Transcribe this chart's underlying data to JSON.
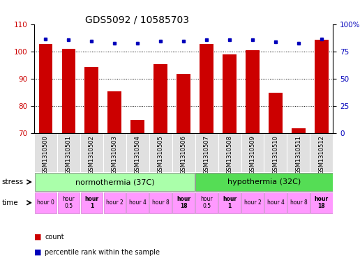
{
  "title": "GDS5092 / 10585703",
  "samples": [
    "GSM1310500",
    "GSM1310501",
    "GSM1310502",
    "GSM1310503",
    "GSM1310504",
    "GSM1310505",
    "GSM1310506",
    "GSM1310507",
    "GSM1310508",
    "GSM1310509",
    "GSM1310510",
    "GSM1310511",
    "GSM1310512"
  ],
  "count_values": [
    103,
    101,
    94.5,
    85.5,
    75,
    95.5,
    92,
    103,
    99,
    100.5,
    85,
    72,
    104.5
  ],
  "percentile_values": [
    87,
    86,
    85,
    83,
    83,
    85,
    85,
    86,
    86,
    86,
    84,
    83,
    87
  ],
  "ylim_left": [
    70,
    110
  ],
  "ylim_right": [
    0,
    100
  ],
  "yticks_left": [
    70,
    80,
    90,
    100,
    110
  ],
  "yticks_right": [
    0,
    25,
    50,
    75,
    100
  ],
  "yticklabels_right": [
    "0",
    "25",
    "50",
    "75",
    "100%"
  ],
  "bar_color": "#cc0000",
  "marker_color": "#0000bb",
  "normothermia_label": "normothermia (37C)",
  "hypothermia_label": "hypothermia (32C)",
  "normothermia_color": "#aaffaa",
  "hypothermia_color": "#55dd55",
  "time_labels": [
    "hour 0",
    "hour\n0.5",
    "hour\n1",
    "hour 2",
    "hour 4",
    "hour 8",
    "hour\n18",
    "hour\n0.5",
    "hour\n1",
    "hour 2",
    "hour 4",
    "hour 8",
    "hour\n18"
  ],
  "time_color": "#ff99ff",
  "bold_indices": [
    2,
    6,
    8,
    12
  ],
  "stress_label": "stress",
  "time_label": "time",
  "legend_count": "count",
  "legend_percentile": "percentile rank within the sample",
  "title_fontsize": 10,
  "tick_fontsize": 7.5,
  "sample_fontsize": 6,
  "stress_fontsize": 8,
  "time_fontsize": 5.5,
  "legend_fontsize": 7
}
